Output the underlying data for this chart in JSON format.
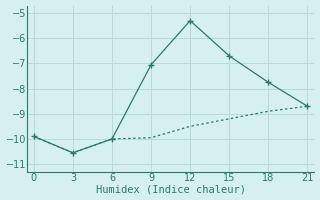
{
  "line1_x": [
    0,
    3,
    6,
    9,
    12,
    15,
    18,
    21
  ],
  "line1_y": [
    -9.9,
    -10.55,
    -10.0,
    -7.05,
    -5.3,
    -6.7,
    -7.75,
    -8.7
  ],
  "line2_x": [
    0,
    3,
    6,
    9,
    12,
    15,
    18,
    21
  ],
  "line2_y": [
    -9.9,
    -10.55,
    -10.0,
    -9.95,
    -9.5,
    -9.2,
    -8.9,
    -8.7
  ],
  "line_color": "#2a7a6e",
  "xlabel": "Humidex (Indice chaleur)",
  "xlim": [
    -0.5,
    21.5
  ],
  "ylim": [
    -11.3,
    -4.7
  ],
  "xticks": [
    0,
    3,
    6,
    9,
    12,
    15,
    18,
    21
  ],
  "yticks": [
    -11,
    -10,
    -9,
    -8,
    -7,
    -6,
    -5
  ],
  "bg_color": "#d6efef",
  "grid_color": "#b8dada",
  "xlabel_fontsize": 7.5,
  "tick_fontsize": 7
}
